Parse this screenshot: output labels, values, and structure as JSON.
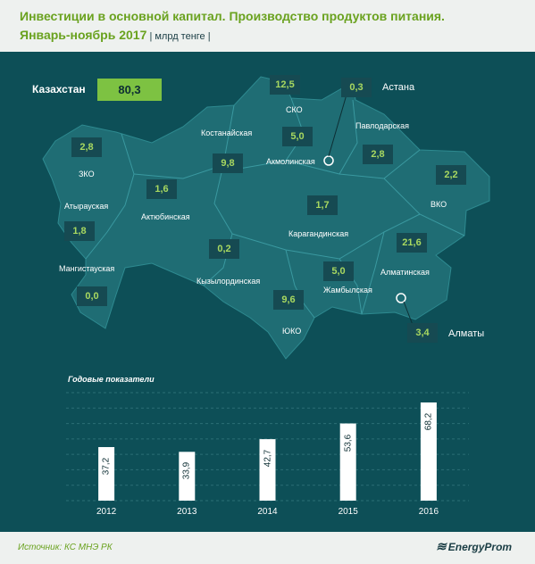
{
  "header": {
    "title_line1": "Инвестиции в основной капитал. Производство продуктов питания.",
    "title_line2": "Январь-ноябрь 2017",
    "unit": " | млрд тенге |"
  },
  "total": {
    "label": "Казахстан",
    "value": "80,3"
  },
  "regions": [
    {
      "key": "sko",
      "name": "СКО",
      "value": "12,5"
    },
    {
      "key": "astana",
      "name": "Астана",
      "value": "0,3"
    },
    {
      "key": "pavlodar",
      "name": "Павлодарская",
      "value": "2,8"
    },
    {
      "key": "kostanay",
      "name": "Костанайская",
      "value": "9,8"
    },
    {
      "key": "akmola",
      "name": "Акмолинская",
      "value": "5,0"
    },
    {
      "key": "zko",
      "name": "ЗКО",
      "value": "2,8"
    },
    {
      "key": "aktobe",
      "name": "Актюбинская",
      "value": "1,6"
    },
    {
      "key": "atyrau",
      "name": "Атырауская",
      "value": "1,8"
    },
    {
      "key": "vko",
      "name": "ВКО",
      "value": "2,2"
    },
    {
      "key": "karaganda",
      "name": "Карагандинская",
      "value": "1,7"
    },
    {
      "key": "almaty_reg",
      "name": "Алматинская",
      "value": "21,6"
    },
    {
      "key": "mangistau",
      "name": "Мангистауская",
      "value": "0,0"
    },
    {
      "key": "kyzylorda",
      "name": "Кызылординская",
      "value": "0,2"
    },
    {
      "key": "zhambyl",
      "name": "Жамбылская",
      "value": "5,0"
    },
    {
      "key": "yuko",
      "name": "ЮКО",
      "value": "9,6"
    },
    {
      "key": "almaty",
      "name": "Алматы",
      "value": "3,4"
    }
  ],
  "chart_data": {
    "type": "bar",
    "title": "Годовые показатели",
    "categories": [
      "2012",
      "2013",
      "2014",
      "2015",
      "2016"
    ],
    "values": [
      37.2,
      33.9,
      42.7,
      53.6,
      68.2
    ],
    "value_labels": [
      "37,2",
      "33,9",
      "42,7",
      "53,6",
      "68,2"
    ],
    "ylim": [
      0,
      75
    ],
    "grid": true,
    "bar_color": "#ffffff"
  },
  "footer": {
    "source": "Источник: КС МНЭ РК",
    "logo": "EnergyProm"
  },
  "colors": {
    "panel": "#0d4f57",
    "map_fill": "#1f6d74",
    "accent_green": "#7dc242",
    "value_green": "#a8d860",
    "title_green": "#6aa21f"
  }
}
